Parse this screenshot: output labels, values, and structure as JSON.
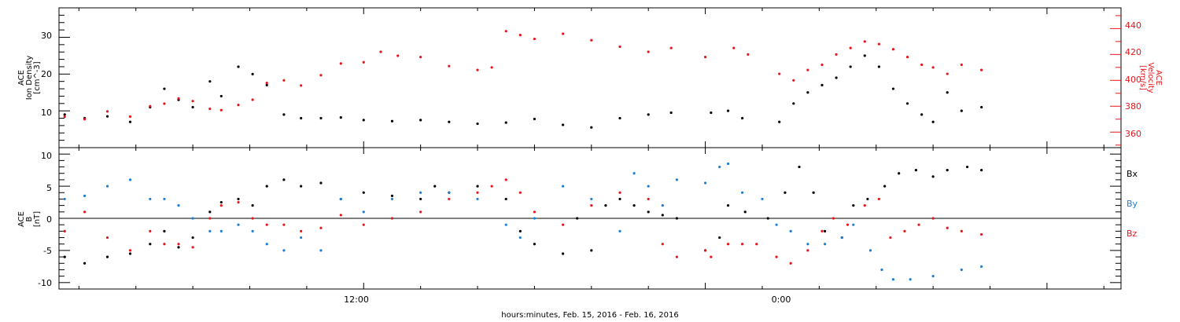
{
  "colors": {
    "black": "#000000",
    "red": "#e8161b",
    "blue": "#1c7fd6"
  },
  "xaxis": {
    "label": "hours:minutes, Feb. 15, 2016 - Feb. 16, 2016",
    "tick_labels": [
      "12:00",
      "0:00"
    ]
  },
  "chart_data": [
    {
      "type": "scatter",
      "panel": "top",
      "ylabel_left": [
        "ACE",
        "Ion Density",
        "[cm^-3]"
      ],
      "ylabel_right": [
        "ACE",
        "Velocity",
        "[km/s]"
      ],
      "ylim_left": [
        0,
        38
      ],
      "ylim_right": [
        348,
        456
      ],
      "yticks_left": [
        "10",
        "20",
        "30"
      ],
      "yticks_right": [
        "360",
        "380",
        "400",
        "420",
        "440"
      ],
      "x_unit": "hours since Feb. 15, 2016 00:00",
      "xlim": [
        1.3,
        38.6
      ],
      "series": [
        {
          "name": "Ion Density",
          "color": "black",
          "axis": "left",
          "points": [
            [
              1.5,
              9.0
            ],
            [
              2.2,
              8.0
            ],
            [
              3.0,
              8.5
            ],
            [
              3.8,
              7.0
            ],
            [
              4.5,
              11
            ],
            [
              5.0,
              16
            ],
            [
              5.5,
              13
            ],
            [
              6.0,
              11
            ],
            [
              6.6,
              18
            ],
            [
              7.0,
              14
            ],
            [
              7.6,
              22
            ],
            [
              8.1,
              20
            ],
            [
              8.6,
              17
            ],
            [
              9.2,
              9
            ],
            [
              9.8,
              8
            ],
            [
              10.5,
              8
            ],
            [
              11.2,
              8.2
            ],
            [
              12.0,
              7.5
            ],
            [
              13.0,
              7.2
            ],
            [
              14.0,
              7.5
            ],
            [
              15.0,
              7.0
            ],
            [
              16.0,
              6.5
            ],
            [
              17.0,
              6.8
            ],
            [
              18.0,
              7.8
            ],
            [
              19.0,
              6.2
            ],
            [
              20.0,
              5.5
            ],
            [
              21.0,
              8.0
            ],
            [
              22.0,
              9.0
            ],
            [
              22.8,
              9.5
            ],
            [
              24.2,
              9.5
            ],
            [
              24.8,
              10
            ],
            [
              25.3,
              8
            ],
            [
              26.6,
              7
            ],
            [
              27.1,
              12
            ],
            [
              27.6,
              15
            ],
            [
              28.1,
              17
            ],
            [
              28.6,
              19
            ],
            [
              29.1,
              22
            ],
            [
              29.6,
              25
            ],
            [
              30.1,
              22
            ],
            [
              30.6,
              16
            ],
            [
              31.1,
              12
            ],
            [
              31.6,
              9
            ],
            [
              32.0,
              7
            ],
            [
              32.5,
              15
            ],
            [
              33.0,
              10
            ],
            [
              33.7,
              11
            ]
          ]
        },
        {
          "name": "Velocity",
          "color": "red",
          "axis": "right",
          "points": [
            [
              1.5,
              372
            ],
            [
              2.2,
              370
            ],
            [
              3.0,
              376
            ],
            [
              3.8,
              372
            ],
            [
              4.5,
              380
            ],
            [
              5.0,
              382
            ],
            [
              5.5,
              386
            ],
            [
              6.0,
              384
            ],
            [
              6.6,
              378
            ],
            [
              7.0,
              377
            ],
            [
              7.6,
              381
            ],
            [
              8.1,
              385
            ],
            [
              8.6,
              398
            ],
            [
              9.2,
              400
            ],
            [
              9.8,
              396
            ],
            [
              10.5,
              404
            ],
            [
              11.2,
              413
            ],
            [
              12.0,
              414
            ],
            [
              12.6,
              422
            ],
            [
              13.2,
              419
            ],
            [
              14.0,
              418
            ],
            [
              15.0,
              411
            ],
            [
              16.0,
              408
            ],
            [
              16.5,
              410
            ],
            [
              17.0,
              438
            ],
            [
              17.5,
              435
            ],
            [
              18.0,
              432
            ],
            [
              19.0,
              436
            ],
            [
              20.0,
              431
            ],
            [
              21.0,
              426
            ],
            [
              22.0,
              422
            ],
            [
              22.8,
              425
            ],
            [
              24.0,
              418
            ],
            [
              25.0,
              425
            ],
            [
              25.5,
              420
            ],
            [
              26.6,
              405
            ],
            [
              27.1,
              400
            ],
            [
              27.6,
              408
            ],
            [
              28.1,
              412
            ],
            [
              28.6,
              420
            ],
            [
              29.1,
              425
            ],
            [
              29.6,
              430
            ],
            [
              30.1,
              428
            ],
            [
              30.6,
              424
            ],
            [
              31.1,
              418
            ],
            [
              31.6,
              412
            ],
            [
              32.0,
              410
            ],
            [
              32.5,
              405
            ],
            [
              33.0,
              412
            ],
            [
              33.7,
              408
            ]
          ]
        }
      ]
    },
    {
      "type": "scatter",
      "panel": "bottom",
      "ylabel_left": [
        "ACE",
        "B",
        "[nT]"
      ],
      "ylim": [
        -11,
        11
      ],
      "yticks": [
        "-10",
        "-5",
        "0",
        "5",
        "10"
      ],
      "x_unit": "hours since Feb. 15, 2016 00:00",
      "xlim": [
        1.3,
        38.6
      ],
      "zero_line": true,
      "series": [
        {
          "name": "Bx",
          "color": "black",
          "points": [
            [
              1.5,
              -6.0
            ],
            [
              2.2,
              -7.0
            ],
            [
              3.0,
              -6.0
            ],
            [
              3.8,
              -5.5
            ],
            [
              4.5,
              -4.0
            ],
            [
              5.0,
              -2.0
            ],
            [
              5.5,
              -4.5
            ],
            [
              6.0,
              -3.0
            ],
            [
              6.6,
              1.0
            ],
            [
              7.0,
              2.5
            ],
            [
              7.6,
              3.0
            ],
            [
              8.1,
              2.0
            ],
            [
              8.6,
              5.0
            ],
            [
              9.2,
              6.0
            ],
            [
              9.8,
              5.0
            ],
            [
              10.5,
              5.5
            ],
            [
              11.2,
              3.0
            ],
            [
              12.0,
              4.0
            ],
            [
              13.0,
              3.5
            ],
            [
              14.0,
              3.0
            ],
            [
              14.5,
              5.0
            ],
            [
              15.0,
              4.0
            ],
            [
              16.0,
              5.0
            ],
            [
              17.0,
              3.0
            ],
            [
              17.5,
              -2.0
            ],
            [
              18.0,
              -4.0
            ],
            [
              19.0,
              -5.5
            ],
            [
              19.5,
              0.0
            ],
            [
              20.0,
              -5.0
            ],
            [
              20.5,
              2.0
            ],
            [
              21.0,
              3.0
            ],
            [
              21.5,
              2.0
            ],
            [
              22.0,
              1.0
            ],
            [
              22.5,
              0.5
            ],
            [
              23.0,
              0.0
            ],
            [
              24.0,
              -5.0
            ],
            [
              24.5,
              -3.0
            ],
            [
              24.8,
              2.0
            ],
            [
              25.4,
              1.0
            ],
            [
              26.2,
              0.0
            ],
            [
              26.8,
              4.0
            ],
            [
              27.3,
              8.0
            ],
            [
              27.8,
              4.0
            ],
            [
              28.2,
              -2.0
            ],
            [
              28.8,
              -3.0
            ],
            [
              29.2,
              2.0
            ],
            [
              29.7,
              3.0
            ],
            [
              30.3,
              5.0
            ],
            [
              30.8,
              7.0
            ],
            [
              31.4,
              7.5
            ],
            [
              32.0,
              6.5
            ],
            [
              32.5,
              7.5
            ],
            [
              33.2,
              8.0
            ],
            [
              33.7,
              7.5
            ]
          ]
        },
        {
          "name": "By",
          "color": "blue",
          "points": [
            [
              1.5,
              3.0
            ],
            [
              2.2,
              3.5
            ],
            [
              3.0,
              5.0
            ],
            [
              3.8,
              6.0
            ],
            [
              4.5,
              3.0
            ],
            [
              5.0,
              3.0
            ],
            [
              5.5,
              2.0
            ],
            [
              6.0,
              0.0
            ],
            [
              6.6,
              -2.0
            ],
            [
              7.0,
              -2.0
            ],
            [
              7.6,
              -1.0
            ],
            [
              8.1,
              -2.0
            ],
            [
              8.6,
              -4.0
            ],
            [
              9.2,
              -5.0
            ],
            [
              9.8,
              -3.0
            ],
            [
              10.5,
              -5.0
            ],
            [
              11.2,
              3.0
            ],
            [
              12.0,
              1.0
            ],
            [
              13.0,
              3.0
            ],
            [
              14.0,
              4.0
            ],
            [
              15.0,
              4.0
            ],
            [
              16.0,
              3.0
            ],
            [
              17.0,
              -1.0
            ],
            [
              17.5,
              -3.0
            ],
            [
              18.0,
              0.0
            ],
            [
              19.0,
              5.0
            ],
            [
              20.0,
              3.0
            ],
            [
              21.0,
              -2.0
            ],
            [
              21.5,
              7.0
            ],
            [
              22.0,
              5.0
            ],
            [
              22.5,
              2.0
            ],
            [
              23.0,
              6.0
            ],
            [
              24.0,
              5.5
            ],
            [
              24.5,
              8.0
            ],
            [
              24.8,
              8.5
            ],
            [
              25.3,
              4.0
            ],
            [
              26.0,
              3.0
            ],
            [
              26.5,
              -1.0
            ],
            [
              27.0,
              -2.0
            ],
            [
              27.6,
              -4.0
            ],
            [
              28.2,
              -4.0
            ],
            [
              28.8,
              -3.0
            ],
            [
              29.2,
              -1.0
            ],
            [
              29.8,
              -5.0
            ],
            [
              30.2,
              -8.0
            ],
            [
              30.6,
              -9.5
            ],
            [
              31.2,
              -9.5
            ],
            [
              32.0,
              -9.0
            ],
            [
              33.0,
              -8.0
            ],
            [
              33.7,
              -7.5
            ]
          ]
        },
        {
          "name": "Bz",
          "color": "red",
          "points": [
            [
              1.5,
              -2.0
            ],
            [
              2.2,
              1.0
            ],
            [
              3.0,
              -3.0
            ],
            [
              3.8,
              -5.0
            ],
            [
              4.5,
              -2.0
            ],
            [
              5.0,
              -4.0
            ],
            [
              5.5,
              -4.0
            ],
            [
              6.0,
              -4.5
            ],
            [
              6.6,
              0.0
            ],
            [
              7.0,
              2.0
            ],
            [
              7.6,
              2.5
            ],
            [
              8.1,
              0.0
            ],
            [
              8.6,
              -1.0
            ],
            [
              9.2,
              -1.0
            ],
            [
              9.8,
              -2.0
            ],
            [
              10.5,
              -1.5
            ],
            [
              11.2,
              0.5
            ],
            [
              12.0,
              -1.0
            ],
            [
              13.0,
              0.0
            ],
            [
              14.0,
              1.0
            ],
            [
              15.0,
              3.0
            ],
            [
              16.0,
              4.0
            ],
            [
              16.5,
              5.0
            ],
            [
              17.0,
              6.0
            ],
            [
              17.5,
              4.0
            ],
            [
              18.0,
              1.0
            ],
            [
              19.0,
              -1.0
            ],
            [
              20.0,
              2.0
            ],
            [
              21.0,
              4.0
            ],
            [
              22.0,
              3.0
            ],
            [
              22.5,
              -4.0
            ],
            [
              23.0,
              -6.0
            ],
            [
              24.0,
              -5.0
            ],
            [
              24.2,
              -6.0
            ],
            [
              24.8,
              -4.0
            ],
            [
              25.3,
              -4.0
            ],
            [
              25.8,
              -4.0
            ],
            [
              26.5,
              -6.0
            ],
            [
              27.0,
              -7.0
            ],
            [
              27.6,
              -5.0
            ],
            [
              28.1,
              -2.0
            ],
            [
              28.5,
              0.0
            ],
            [
              29.0,
              -1.0
            ],
            [
              29.6,
              2.0
            ],
            [
              30.1,
              3.0
            ],
            [
              30.5,
              -3.0
            ],
            [
              31.0,
              -2.0
            ],
            [
              31.5,
              -1.0
            ],
            [
              32.0,
              0.0
            ],
            [
              32.5,
              -1.5
            ],
            [
              33.0,
              -2.0
            ],
            [
              33.7,
              -2.5
            ]
          ]
        }
      ]
    }
  ],
  "legend": [
    "Bx",
    "By",
    "Bz"
  ]
}
